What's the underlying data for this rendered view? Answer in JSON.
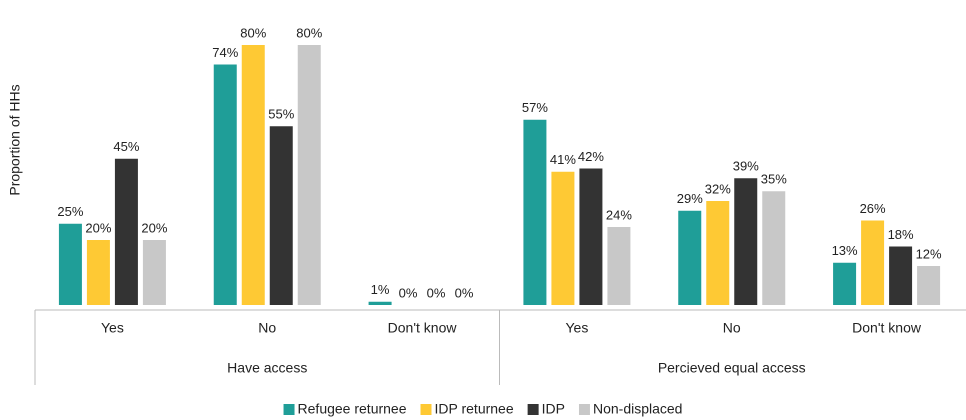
{
  "chart_data": {
    "type": "bar",
    "y_label": "Proportion of HHs",
    "groups": [
      {
        "name": "Have access",
        "categories": [
          "Yes",
          "No",
          "Don't know"
        ]
      },
      {
        "name": "Percieved equal access",
        "categories": [
          "Yes",
          "No",
          "Don't know"
        ]
      }
    ],
    "series": [
      {
        "name": "Refugee returnee",
        "color": "#1f9e98",
        "values": [
          25,
          74,
          1,
          57,
          29,
          13
        ],
        "value_labels": [
          "25%",
          "74%",
          "1%",
          "57%",
          "29%",
          "13%"
        ]
      },
      {
        "name": "IDP returnee",
        "color": "#fec934",
        "values": [
          20,
          80,
          0,
          41,
          32,
          26
        ],
        "value_labels": [
          "20%",
          "80%",
          "0%",
          "41%",
          "32%",
          "26%"
        ]
      },
      {
        "name": "IDP",
        "color": "#333333",
        "values": [
          45,
          55,
          0,
          42,
          39,
          18
        ],
        "value_labels": [
          "45%",
          "55%",
          "0%",
          "42%",
          "39%",
          "18%"
        ]
      },
      {
        "name": "Non-displaced",
        "color": "#c8c8c8",
        "values": [
          20,
          80,
          0,
          24,
          35,
          12
        ],
        "value_labels": [
          "20%",
          "80%",
          "0%",
          "24%",
          "35%",
          "12%"
        ]
      }
    ]
  }
}
